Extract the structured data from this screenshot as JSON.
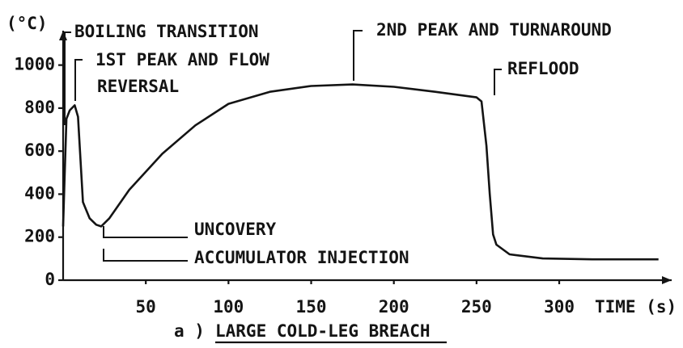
{
  "chart_data": {
    "type": "line",
    "caption": "a )",
    "title": "LARGE COLD-LEG BREACH",
    "y_label": "(°C)",
    "x_label": "TIME (s)",
    "color": "#141414",
    "x": [
      0,
      1,
      2,
      4,
      7,
      9,
      12,
      16,
      20,
      23,
      28,
      40,
      60,
      80,
      100,
      125,
      150,
      175,
      200,
      225,
      250,
      253,
      256,
      258,
      260,
      262,
      270,
      290,
      320,
      360
    ],
    "values": [
      250,
      500,
      750,
      790,
      813,
      760,
      363,
      288,
      258,
      250,
      288,
      420,
      588,
      720,
      820,
      876,
      903,
      910,
      899,
      876,
      850,
      831,
      625,
      400,
      213,
      165,
      120,
      101,
      97,
      97
    ],
    "xlim": [
      0,
      368
    ],
    "ylim": [
      0,
      1160
    ],
    "xticks": [
      50,
      100,
      150,
      200,
      250,
      300
    ],
    "yticks": [
      0,
      200,
      400,
      600,
      800,
      1000
    ],
    "annotations": [
      {
        "lines": [
          "BOILING TRANSITION"
        ]
      },
      {
        "lines": [
          "1ST PEAK AND FLOW",
          "REVERSAL"
        ]
      },
      {
        "lines": [
          "2ND PEAK AND TURNAROUND"
        ]
      },
      {
        "lines": [
          "REFLOOD"
        ]
      },
      {
        "lines": [
          "UNCOVERY"
        ]
      },
      {
        "lines": [
          "ACCUMULATOR INJECTION"
        ]
      }
    ]
  }
}
